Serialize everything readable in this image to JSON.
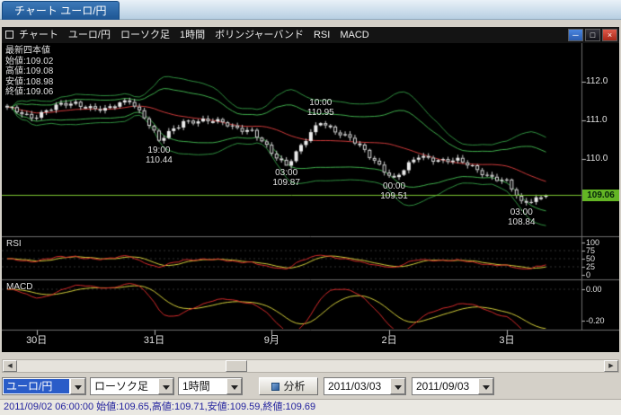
{
  "tab": {
    "label": "チャート  ユーロ/円"
  },
  "titlebar": {
    "items": [
      "チャート",
      "ユーロ/円",
      "ローソク足",
      "1時間",
      "ボリンジャーバンド",
      "RSI",
      "MACD"
    ],
    "buttons": {
      "minimize": "─",
      "maximize": "□",
      "close": "×"
    }
  },
  "legend": {
    "title": "最新四本値",
    "open": "始値:109.02",
    "high": "高値:109.08",
    "low": "安値:108.98",
    "close": "終値:109.06"
  },
  "rsi_panel": {
    "label": "RSI",
    "axis": [
      {
        "label": "100",
        "v": 100
      },
      {
        "label": "75",
        "v": 75
      },
      {
        "label": "50",
        "v": 50
      },
      {
        "label": "25",
        "v": 25
      },
      {
        "label": "0",
        "v": 0
      }
    ]
  },
  "macd_panel": {
    "label": "MACD",
    "axis": [
      {
        "label": "0.00",
        "v": 0
      },
      {
        "label": "-0.20",
        "v": -0.2
      }
    ]
  },
  "scrollbar": {
    "left_arrow": "◀",
    "right_arrow": "▶"
  },
  "toolbar": {
    "pair": "ユーロ/円",
    "chart_type": "ローソク足",
    "timeframe": "1時間",
    "analyze": "分析",
    "date_from": "2011/03/03",
    "date_to": "2011/09/03"
  },
  "statusbar": {
    "text": "2011/09/02 06:00:00  始値:109.65,高値:109.71,安値:109.59,終値:109.69"
  },
  "colors": {
    "band_green": "#3fae4c",
    "band_green_outer": "#2f8f3f",
    "sma_red": "#d13b3b",
    "rsi_red": "#d62b2b",
    "rsi_yellow": "#d4cf3a",
    "macd_red": "#d62b2b",
    "macd_yellow": "#d4cf3a",
    "current_line": "#7dc832",
    "tag_bg": "#63b524"
  },
  "chart_data": {
    "type": "candlestick",
    "title": "ユーロ/円 1時間 ローソク足",
    "overlays": [
      "ボリンジャーバンド(±2σ,±3σ)",
      "SMA20"
    ],
    "panels": [
      "RSI",
      "MACD"
    ],
    "bars_count": 111,
    "price_axis": [
      {
        "label": "112.0",
        "price": 112.0
      },
      {
        "label": "111.0",
        "price": 111.0
      },
      {
        "label": "110.0",
        "price": 110.0
      }
    ],
    "current_price": 109.06,
    "current_label": "109.06",
    "latest_bar": {
      "open": 109.02,
      "high": 109.08,
      "low": 108.98,
      "close": 109.06
    },
    "hovered_bar": {
      "time": "2011/09/02 06:00:00",
      "open": 109.65,
      "high": 109.71,
      "low": 109.59,
      "close": 109.69
    },
    "price_anchors": [
      [
        0,
        111.3
      ],
      [
        5,
        111.1
      ],
      [
        10,
        111.35
      ],
      [
        14,
        111.45
      ],
      [
        20,
        111.25
      ],
      [
        25,
        111.55
      ],
      [
        28,
        111.1
      ],
      [
        31,
        110.44
      ],
      [
        36,
        111.0
      ],
      [
        44,
        110.95
      ],
      [
        50,
        110.7
      ],
      [
        54,
        110.15
      ],
      [
        57,
        109.87
      ],
      [
        64,
        110.95
      ],
      [
        70,
        110.55
      ],
      [
        74,
        110.05
      ],
      [
        79,
        109.51
      ],
      [
        84,
        110.05
      ],
      [
        92,
        109.95
      ],
      [
        98,
        109.6
      ],
      [
        102,
        109.4
      ],
      [
        105,
        108.84
      ],
      [
        108,
        109.0
      ],
      [
        110,
        109.06
      ]
    ],
    "annotations": [
      {
        "time": "19:00",
        "label": "110.44",
        "price": 110.44,
        "i": 31,
        "side": "below"
      },
      {
        "time": "03:00",
        "label": "109.87",
        "price": 109.87,
        "i": 57,
        "side": "below"
      },
      {
        "time": "10:00",
        "label": "110.95",
        "price": 110.95,
        "i": 64,
        "side": "above"
      },
      {
        "time": "00:00",
        "label": "109.51",
        "price": 109.51,
        "i": 79,
        "side": "below"
      },
      {
        "time": "03:00",
        "label": "108.84",
        "price": 108.84,
        "i": 105,
        "side": "below"
      }
    ],
    "x_labels": [
      {
        "text": "30日",
        "i": 6
      },
      {
        "text": "31日",
        "i": 30
      },
      {
        "text": "9月",
        "i": 54
      },
      {
        "text": "2日",
        "i": 78
      },
      {
        "text": "3日",
        "i": 102
      }
    ],
    "rsi_range": [
      0,
      100
    ],
    "macd_ticks": [
      0.0,
      -0.2
    ]
  }
}
